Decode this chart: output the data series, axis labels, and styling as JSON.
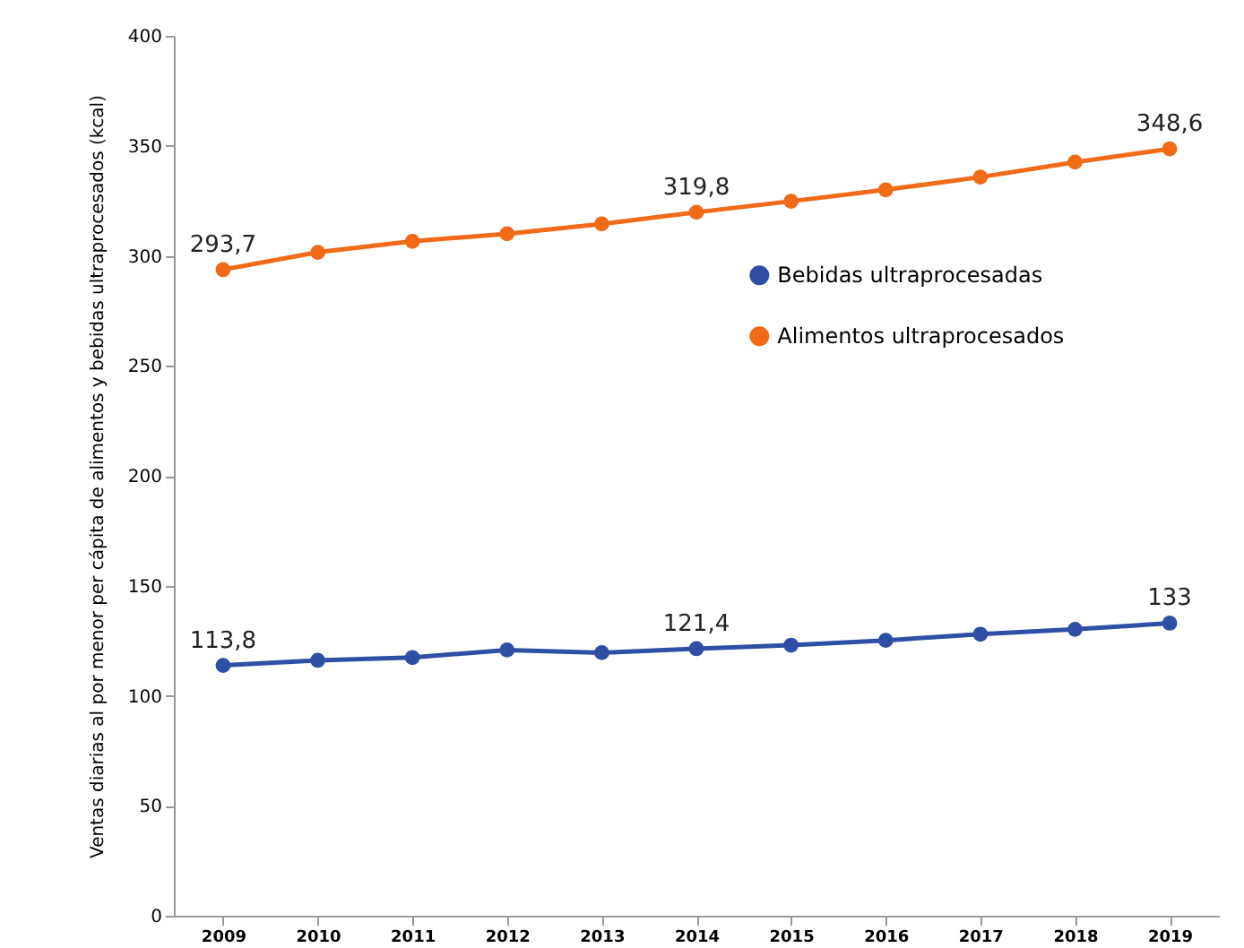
{
  "chart_data": {
    "type": "line",
    "ylabel": "Ventas diarias al por menor per cápita de alimentos y bebidas ultraprocesados (kcal)",
    "categories": [
      "2009",
      "2010",
      "2011",
      "2012",
      "2013",
      "2014",
      "2015",
      "2016",
      "2017",
      "2018",
      "2019"
    ],
    "series": [
      {
        "name": "Bebidas ultraprocesadas",
        "color": "#2e4fa3",
        "values": [
          113.8,
          116.1,
          117.4,
          120.8,
          119.6,
          121.4,
          123,
          125.2,
          128,
          130.2,
          133
        ],
        "value_labels": [
          "113,8",
          null,
          null,
          null,
          null,
          "121,4",
          null,
          null,
          null,
          null,
          "133"
        ]
      },
      {
        "name": "Alimentos ultraprocesados",
        "color": "#f06a17",
        "values": [
          293.7,
          301.6,
          306.6,
          310,
          314.5,
          319.8,
          324.8,
          330,
          335.8,
          342.6,
          348.6
        ],
        "value_labels": [
          "293,7",
          null,
          null,
          null,
          null,
          "319,8",
          null,
          null,
          null,
          null,
          "348,6"
        ]
      }
    ],
    "ylim": [
      0,
      400
    ],
    "yticks": [
      0,
      50,
      100,
      150,
      200,
      250,
      300,
      350,
      400
    ],
    "grid": false,
    "legend": "right",
    "marker": "circle",
    "line_style": "solid"
  }
}
